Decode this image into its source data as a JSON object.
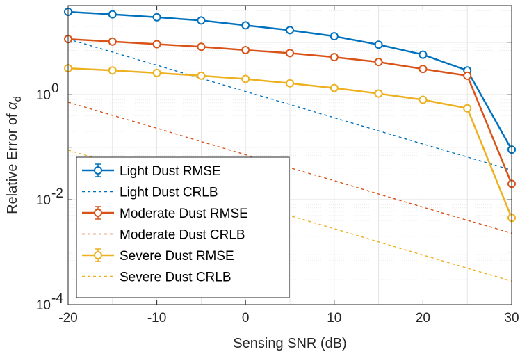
{
  "chart_data": {
    "type": "line",
    "xlabel": "Sensing SNR (dB)",
    "ylabel_main": "Relative Error of ",
    "ylabel_symbol": "α",
    "ylabel_subscript": "d",
    "xlim": [
      -20,
      30
    ],
    "ylim": [
      0.0001,
      50
    ],
    "yscale": "log",
    "grid": true,
    "legend_position": "bottom-left",
    "xticks": [
      -20,
      -10,
      0,
      10,
      20,
      30
    ],
    "xtick_labels": [
      "-20",
      "-10",
      "0",
      "10",
      "20",
      "30"
    ],
    "yticks": [
      {
        "value": 1,
        "base": "10",
        "exp": "0"
      },
      {
        "value": 0.01,
        "base": "10",
        "exp": "-2"
      },
      {
        "value": 0.0001,
        "base": "10",
        "exp": "-4"
      }
    ],
    "x": [
      -20,
      -15,
      -10,
      -5,
      0,
      5,
      10,
      15,
      20,
      25,
      30
    ],
    "series": [
      {
        "name": "Light Dust RMSE",
        "style": "solid-marker",
        "color": "#0072BD",
        "values": [
          38,
          34,
          30,
          26,
          21,
          17,
          13,
          9,
          5.8,
          2.9,
          0.09
        ]
      },
      {
        "name": "Light Dust CRLB",
        "style": "dashed",
        "color": "#0072BD",
        "values": [
          11.5,
          6.5,
          3.65,
          2.05,
          1.15,
          0.65,
          0.365,
          0.205,
          0.115,
          0.065,
          0.0365
        ]
      },
      {
        "name": "Moderate Dust RMSE",
        "style": "solid-marker",
        "color": "#D95319",
        "values": [
          11.5,
          10.3,
          9.2,
          8.2,
          7.1,
          6.2,
          5.2,
          4.2,
          3.1,
          2.3,
          0.02
        ]
      },
      {
        "name": "Moderate Dust CRLB",
        "style": "dashed",
        "color": "#D95319",
        "values": [
          0.72,
          0.405,
          0.23,
          0.128,
          0.072,
          0.0405,
          0.023,
          0.0128,
          0.0072,
          0.00405,
          0.0023
        ]
      },
      {
        "name": "Severe Dust RMSE",
        "style": "solid-marker",
        "color": "#EDB120",
        "values": [
          3.2,
          2.9,
          2.6,
          2.3,
          2.0,
          1.65,
          1.34,
          1.05,
          0.8,
          0.55,
          0.0045
        ]
      },
      {
        "name": "Severe Dust CRLB",
        "style": "dashed",
        "color": "#EDB120",
        "values": [
          0.088,
          0.0495,
          0.028,
          0.0157,
          0.0088,
          0.00495,
          0.0028,
          0.00157,
          0.00088,
          0.000495,
          0.00028
        ]
      }
    ]
  }
}
